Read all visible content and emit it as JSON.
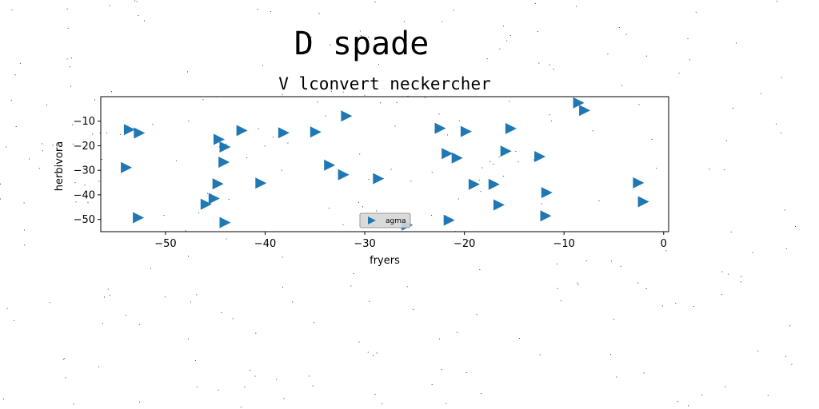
{
  "chart_data": {
    "type": "scatter",
    "suptitle": "D spade",
    "title": "V lconvert neckercher",
    "xlabel": "fryers",
    "ylabel": "herbivora",
    "xlim": [
      -56.5,
      0.5
    ],
    "ylim": [
      -55,
      0
    ],
    "xticks": [
      -50,
      -40,
      -30,
      -20,
      -10,
      0
    ],
    "yticks": [
      -10,
      -20,
      -30,
      -40,
      -50
    ],
    "xtick_labels": [
      "−50",
      "−40",
      "−30",
      "−20",
      "−10",
      "0"
    ],
    "ytick_labels": [
      "−10",
      "−20",
      "−30",
      "−40",
      "−50"
    ],
    "marker": "triangle-right",
    "color": "#1f77b4",
    "legend": {
      "label": "agma",
      "placement": "lower center"
    },
    "series": [
      {
        "name": "agma",
        "x": [
          -53.7,
          -52.7,
          -54.0,
          -52.8,
          -44.7,
          -44.1,
          -44.2,
          -42.4,
          -38.2,
          -35.0,
          -31.9,
          -44.8,
          -45.2,
          -46.0,
          -44.1,
          -40.5,
          -33.6,
          -32.2,
          -28.7,
          -25.8,
          -22.5,
          -21.8,
          -20.8,
          -19.9,
          -19.1,
          -17.1,
          -15.4,
          -15.9,
          -12.5,
          -16.6,
          -11.8,
          -11.9,
          -21.6,
          -8.6,
          -8.0,
          -2.6,
          -2.1
        ],
        "y": [
          -13.4,
          -14.8,
          -28.9,
          -49.3,
          -17.4,
          -20.5,
          -26.7,
          -13.8,
          -14.7,
          -14.4,
          -7.9,
          -35.5,
          -41.5,
          -43.8,
          -51.3,
          -35.2,
          -27.9,
          -31.8,
          -33.4,
          -52.3,
          -12.9,
          -23.2,
          -25.0,
          -14.2,
          -35.7,
          -35.7,
          -13.0,
          -22.2,
          -24.4,
          -44.1,
          -39.1,
          -48.6,
          -50.3,
          -2.5,
          -5.6,
          -35.1,
          -42.8
        ]
      }
    ]
  }
}
